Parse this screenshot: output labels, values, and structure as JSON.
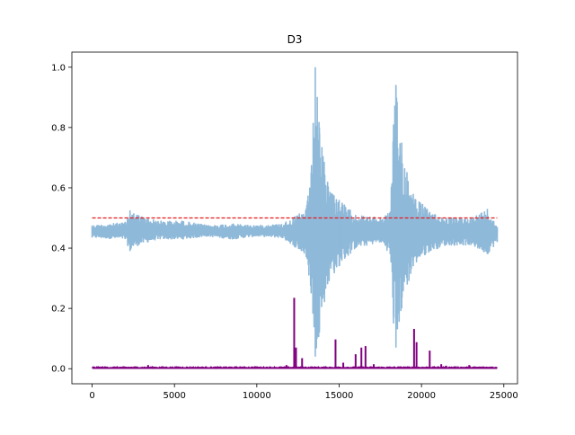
{
  "chart_data": {
    "type": "line",
    "title": "D3",
    "xlabel": "",
    "ylabel": "",
    "xlim": [
      -1230,
      25830
    ],
    "ylim": [
      -0.05,
      1.05
    ],
    "x_ticks": [
      0,
      5000,
      10000,
      15000,
      20000,
      25000
    ],
    "x_tick_labels": [
      "0",
      "5000",
      "10000",
      "15000",
      "20000",
      "25000"
    ],
    "y_ticks": [
      0.0,
      0.2,
      0.4,
      0.6,
      0.8,
      1.0
    ],
    "y_tick_labels": [
      "0.0",
      "0.2",
      "0.4",
      "0.6",
      "0.8",
      "1.0"
    ],
    "grid": false,
    "legend": "none",
    "n_points": 24600,
    "series": [
      {
        "color": "#8fb9d9",
        "style": "signal",
        "baseline": 0.455,
        "envelope": [
          {
            "x": 0,
            "low": 0.435,
            "high": 0.475
          },
          {
            "x": 2000,
            "low": 0.43,
            "high": 0.485
          },
          {
            "x": 2300,
            "low": 0.39,
            "high": 0.525
          },
          {
            "x": 2800,
            "low": 0.41,
            "high": 0.51
          },
          {
            "x": 4000,
            "low": 0.43,
            "high": 0.49
          },
          {
            "x": 5500,
            "low": 0.43,
            "high": 0.49
          },
          {
            "x": 7000,
            "low": 0.44,
            "high": 0.475
          },
          {
            "x": 8500,
            "low": 0.43,
            "high": 0.48
          },
          {
            "x": 10000,
            "low": 0.44,
            "high": 0.475
          },
          {
            "x": 11500,
            "low": 0.435,
            "high": 0.48
          },
          {
            "x": 12200,
            "low": 0.41,
            "high": 0.5
          },
          {
            "x": 13000,
            "low": 0.37,
            "high": 0.53
          },
          {
            "x": 13300,
            "low": 0.25,
            "high": 0.65
          },
          {
            "x": 13550,
            "low": 0.04,
            "high": 1.0
          },
          {
            "x": 13800,
            "low": 0.12,
            "high": 0.8
          },
          {
            "x": 14300,
            "low": 0.28,
            "high": 0.62
          },
          {
            "x": 15000,
            "low": 0.34,
            "high": 0.56
          },
          {
            "x": 16000,
            "low": 0.4,
            "high": 0.51
          },
          {
            "x": 17500,
            "low": 0.42,
            "high": 0.5
          },
          {
            "x": 18100,
            "low": 0.38,
            "high": 0.52
          },
          {
            "x": 18300,
            "low": 0.15,
            "high": 0.81
          },
          {
            "x": 18450,
            "low": 0.07,
            "high": 0.94
          },
          {
            "x": 18800,
            "low": 0.2,
            "high": 0.75
          },
          {
            "x": 19500,
            "low": 0.34,
            "high": 0.58
          },
          {
            "x": 20500,
            "low": 0.39,
            "high": 0.52
          },
          {
            "x": 21500,
            "low": 0.41,
            "high": 0.5
          },
          {
            "x": 23000,
            "low": 0.41,
            "high": 0.5
          },
          {
            "x": 24000,
            "low": 0.38,
            "high": 0.53
          },
          {
            "x": 24600,
            "low": 0.42,
            "high": 0.47
          }
        ]
      },
      {
        "color": "#800080",
        "style": "spikes",
        "baseline": 0.002,
        "peaks": [
          {
            "x": 1500,
            "y": 0.006
          },
          {
            "x": 3400,
            "y": 0.012
          },
          {
            "x": 6800,
            "y": 0.005
          },
          {
            "x": 9900,
            "y": 0.008
          },
          {
            "x": 11800,
            "y": 0.012
          },
          {
            "x": 12270,
            "y": 0.235
          },
          {
            "x": 12380,
            "y": 0.07
          },
          {
            "x": 12750,
            "y": 0.035
          },
          {
            "x": 14780,
            "y": 0.097
          },
          {
            "x": 15250,
            "y": 0.02
          },
          {
            "x": 16000,
            "y": 0.048
          },
          {
            "x": 16350,
            "y": 0.07
          },
          {
            "x": 16600,
            "y": 0.075
          },
          {
            "x": 17100,
            "y": 0.015
          },
          {
            "x": 19550,
            "y": 0.132
          },
          {
            "x": 19700,
            "y": 0.088
          },
          {
            "x": 20500,
            "y": 0.06
          },
          {
            "x": 21200,
            "y": 0.015
          },
          {
            "x": 21500,
            "y": 0.01
          },
          {
            "x": 22900,
            "y": 0.012
          },
          {
            "x": 24300,
            "y": 0.006
          }
        ]
      },
      {
        "color": "#e31a1c",
        "style": "dashed",
        "x": [
          0,
          24600
        ],
        "y": [
          0.5,
          0.5
        ]
      }
    ]
  }
}
